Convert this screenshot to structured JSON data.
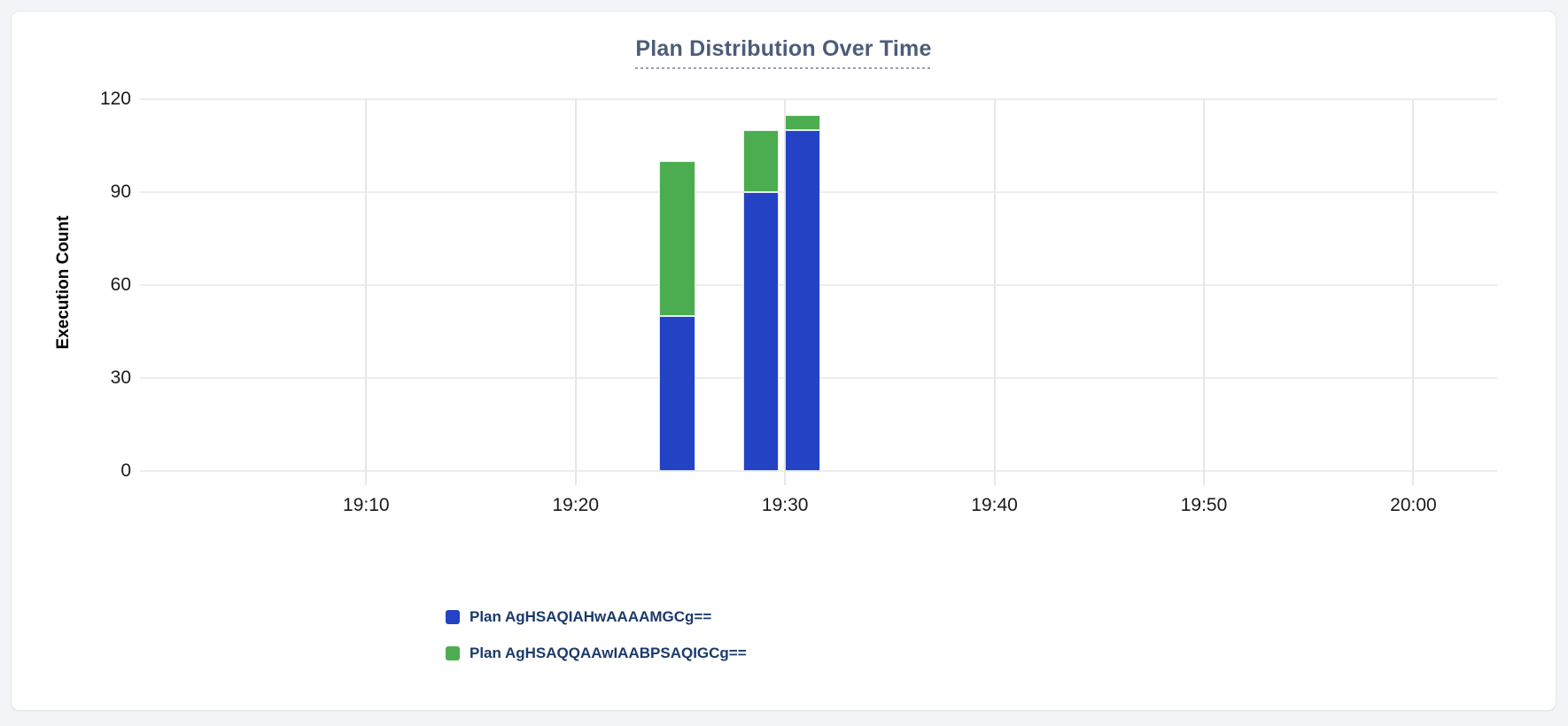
{
  "panel": {
    "title": "Plan Distribution Over Time"
  },
  "colors": {
    "page_background": "#f2f4f8",
    "card_background": "#ffffff",
    "card_border": "#e3e6ea",
    "title_text": "#4c5d7a",
    "axis_tick_text": "#1a1a1a",
    "grid_line": "#ededed",
    "legend_text": "#1b3a69",
    "series_blue": "#2342c4",
    "series_green": "#4cad50"
  },
  "chart_data": {
    "type": "bar",
    "stacked": true,
    "title": "Plan Distribution Over Time",
    "xlabel": "",
    "ylabel": "Execution Count",
    "ylim": [
      0,
      120
    ],
    "y_ticks": [
      0,
      30,
      60,
      90,
      120
    ],
    "x_ticks": [
      "19:10",
      "19:20",
      "19:30",
      "19:40",
      "19:50",
      "20:00"
    ],
    "x_domain_minutes": [
      1139.2,
      1204.0
    ],
    "categories": [
      "19:24",
      "19:28",
      "19:30"
    ],
    "bar_width_minutes": 1.7,
    "series": [
      {
        "name": "Plan AgHSAQIAHwAAAAMGCg==",
        "color": "#2342c4",
        "values": [
          50,
          90,
          110
        ]
      },
      {
        "name": "Plan AgHSAQQAAwIAABPSAQIGCg==",
        "color": "#4cad50",
        "values": [
          50,
          20,
          5
        ]
      }
    ],
    "totals": [
      100,
      110,
      115
    ],
    "grid": true,
    "legend_position": "bottom-left"
  }
}
